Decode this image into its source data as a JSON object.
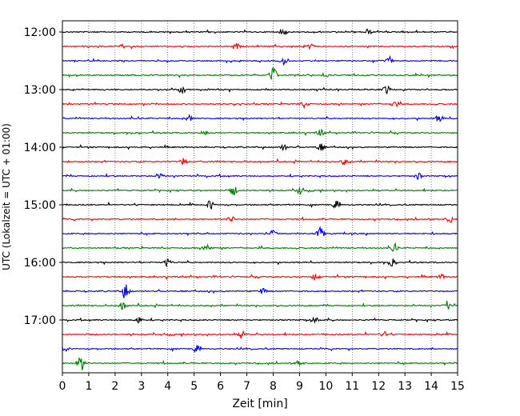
{
  "chart_data": {
    "type": "line",
    "title": "",
    "xlabel": "Zeit  [min]",
    "ylabel": "UTC (Lokalzeit = UTC + 01:00)",
    "xlim": [
      0,
      15
    ],
    "x_ticks": [
      "0",
      "1",
      "2",
      "3",
      "4",
      "5",
      "6",
      "7",
      "8",
      "9",
      "10",
      "11",
      "12",
      "13",
      "14",
      "15"
    ],
    "y_ticks": [
      {
        "label": "12:00",
        "trace": 0
      },
      {
        "label": "13:00",
        "trace": 4
      },
      {
        "label": "14:00",
        "trace": 8
      },
      {
        "label": "15:00",
        "trace": 12
      },
      {
        "label": "16:00",
        "trace": 16
      },
      {
        "label": "17:00",
        "trace": 20
      }
    ],
    "trace_interval_min": 15,
    "trace_colors": [
      "#000000",
      "#ff0000",
      "#0000ff",
      "#008000"
    ],
    "grid": "vertical dotted",
    "series": [
      {
        "start": "12:00",
        "color": "#000000",
        "events": [
          {
            "t": 8.4,
            "a": 0.4
          },
          {
            "t": 11.6,
            "a": 0.3
          }
        ]
      },
      {
        "start": "12:15",
        "color": "#ff0000",
        "events": [
          {
            "t": 6.6,
            "a": 0.3
          },
          {
            "t": 9.4,
            "a": 0.3
          }
        ]
      },
      {
        "start": "12:30",
        "color": "#0000ff",
        "events": [
          {
            "t": 8.4,
            "a": 0.35
          },
          {
            "t": 12.4,
            "a": 0.3
          }
        ]
      },
      {
        "start": "12:45",
        "color": "#008000",
        "events": [
          {
            "t": 8.0,
            "a": 1.0
          },
          {
            "t": 10.0,
            "a": 0.3
          }
        ]
      },
      {
        "start": "13:00",
        "color": "#000000",
        "events": [
          {
            "t": 12.3,
            "a": 0.5
          },
          {
            "t": 4.5,
            "a": 0.3
          }
        ]
      },
      {
        "start": "13:15",
        "color": "#ff0000",
        "events": [
          {
            "t": 9.2,
            "a": 0.4
          },
          {
            "t": 12.6,
            "a": 0.35
          }
        ]
      },
      {
        "start": "13:30",
        "color": "#0000ff",
        "events": [
          {
            "t": 4.8,
            "a": 0.4
          },
          {
            "t": 14.3,
            "a": 0.4
          }
        ]
      },
      {
        "start": "13:45",
        "color": "#008000",
        "events": [
          {
            "t": 9.8,
            "a": 0.45
          },
          {
            "t": 5.4,
            "a": 0.3
          }
        ]
      },
      {
        "start": "14:00",
        "color": "#000000",
        "events": [
          {
            "t": 8.4,
            "a": 0.4
          },
          {
            "t": 9.8,
            "a": 0.4
          }
        ]
      },
      {
        "start": "14:15",
        "color": "#ff0000",
        "events": [
          {
            "t": 4.6,
            "a": 0.35
          },
          {
            "t": 10.7,
            "a": 0.3
          }
        ]
      },
      {
        "start": "14:30",
        "color": "#0000ff",
        "events": [
          {
            "t": 3.7,
            "a": 0.3
          },
          {
            "t": 13.5,
            "a": 0.35
          }
        ]
      },
      {
        "start": "14:45",
        "color": "#008000",
        "events": [
          {
            "t": 6.5,
            "a": 0.55
          },
          {
            "t": 9.0,
            "a": 0.45
          }
        ]
      },
      {
        "start": "15:00",
        "color": "#000000",
        "events": [
          {
            "t": 5.6,
            "a": 0.45
          },
          {
            "t": 10.4,
            "a": 0.4
          }
        ]
      },
      {
        "start": "15:15",
        "color": "#ff0000",
        "events": [
          {
            "t": 6.4,
            "a": 0.4
          },
          {
            "t": 14.7,
            "a": 0.35
          }
        ]
      },
      {
        "start": "15:30",
        "color": "#0000ff",
        "events": [
          {
            "t": 9.8,
            "a": 0.7
          },
          {
            "t": 8.0,
            "a": 0.35
          }
        ]
      },
      {
        "start": "15:45",
        "color": "#008000",
        "events": [
          {
            "t": 5.5,
            "a": 0.4
          },
          {
            "t": 12.6,
            "a": 0.4
          }
        ]
      },
      {
        "start": "16:00",
        "color": "#000000",
        "events": [
          {
            "t": 4.0,
            "a": 0.45
          },
          {
            "t": 12.5,
            "a": 0.4
          }
        ]
      },
      {
        "start": "16:15",
        "color": "#ff0000",
        "events": [
          {
            "t": 9.6,
            "a": 0.35
          },
          {
            "t": 14.4,
            "a": 0.35
          }
        ]
      },
      {
        "start": "16:30",
        "color": "#0000ff",
        "events": [
          {
            "t": 2.4,
            "a": 0.75
          },
          {
            "t": 7.6,
            "a": 0.3
          }
        ]
      },
      {
        "start": "16:45",
        "color": "#008000",
        "events": [
          {
            "t": 2.3,
            "a": 0.4
          },
          {
            "t": 14.6,
            "a": 0.45
          }
        ]
      },
      {
        "start": "17:00",
        "color": "#000000",
        "events": [
          {
            "t": 2.9,
            "a": 0.35
          },
          {
            "t": 9.6,
            "a": 0.35
          }
        ]
      },
      {
        "start": "17:15",
        "color": "#ff0000",
        "events": [
          {
            "t": 6.8,
            "a": 0.35
          },
          {
            "t": 12.2,
            "a": 0.3
          }
        ]
      },
      {
        "start": "17:30",
        "color": "#0000ff",
        "events": [
          {
            "t": 0.1,
            "a": 0.35
          },
          {
            "t": 5.1,
            "a": 0.35
          }
        ]
      },
      {
        "start": "17:45",
        "color": "#008000",
        "events": [
          {
            "t": 0.7,
            "a": 1.0
          },
          {
            "t": 9.0,
            "a": 0.3
          }
        ]
      }
    ]
  }
}
